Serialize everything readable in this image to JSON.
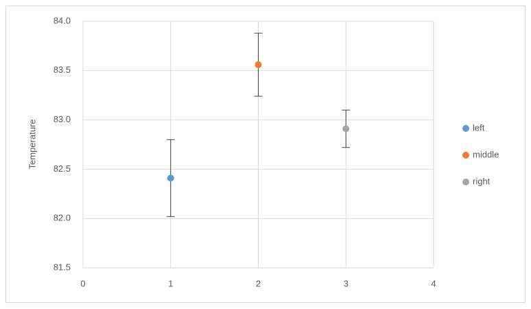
{
  "chart_data": {
    "type": "scatter",
    "y_label": "Temperature",
    "series": [
      {
        "name": "left",
        "color": "#5b9bd5",
        "x": [
          1
        ],
        "values": [
          82.41
        ],
        "errors": [
          0.39
        ]
      },
      {
        "name": "middle",
        "color": "#ed7d31",
        "x": [
          2
        ],
        "values": [
          83.56
        ],
        "errors": [
          0.32
        ]
      },
      {
        "name": "right",
        "color": "#a5a5a5",
        "x": [
          3
        ],
        "values": [
          82.91
        ],
        "errors": [
          0.19
        ]
      }
    ],
    "xlim": [
      0,
      4
    ],
    "xticks": [
      0,
      1,
      2,
      3,
      4
    ],
    "ylim": [
      81.5,
      84
    ],
    "yticks": [
      81.5,
      {
        "value": 82,
        "label": "82.0"
      },
      82.5,
      {
        "value": 83,
        "label": "83.0"
      },
      83.5,
      {
        "value": 84,
        "label": "84.0"
      }
    ],
    "grid": true,
    "legend": "right"
  }
}
